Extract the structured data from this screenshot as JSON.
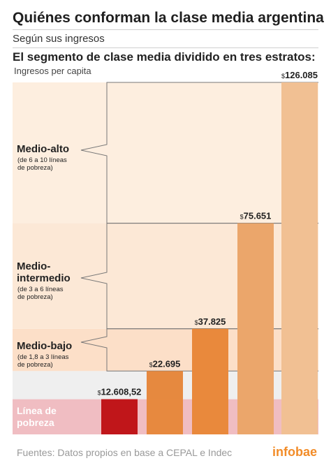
{
  "header": {
    "title": "Quiénes conforman la clase media argentina",
    "subtitle": "Según sus ingresos",
    "heading": "El segmento de clase media dividido en tres estratos:"
  },
  "footer": {
    "source": "Fuentes: Datos propios en base a CEPAL e Indec",
    "brand": "infobae"
  },
  "chart_data": {
    "type": "bar",
    "ylabel": "Ingresos per capita",
    "ylim": [
      0,
      126085
    ],
    "currency_symbol": "$",
    "bars": [
      {
        "value": 12608.52,
        "label": "12.608,52",
        "color": "#c0161a"
      },
      {
        "value": 22695,
        "label": "22.695",
        "color": "#e6893f"
      },
      {
        "value": 37825,
        "label": "37.825",
        "color": "#e9893c"
      },
      {
        "value": 75651,
        "label": "75.651",
        "color": "#eba66b"
      },
      {
        "value": 126085,
        "label": "126.085",
        "color": "#f1c093"
      }
    ],
    "bands": [
      {
        "from": 0,
        "to": 12608.52,
        "name": "Línea de pobreza",
        "color": "#f0bdc2"
      },
      {
        "from": 12608.52,
        "to": 22695,
        "color": "#efefef"
      },
      {
        "from": 22695,
        "to": 37825,
        "name": "Medio-bajo",
        "note": "(de 1,8 a 3 líneas de pobreza)",
        "color": "#fcdfc8"
      },
      {
        "from": 37825,
        "to": 75651,
        "name": "Medio-intermedio",
        "note": "(de 3 a 6 líneas de pobreza)",
        "color": "#fce8d6"
      },
      {
        "from": 75651,
        "to": 126085,
        "name": "Medio-alto",
        "note": "(de 6 a 10 líneas de pobreza)",
        "color": "#fdeedf"
      }
    ],
    "strata_labels": {
      "alto": {
        "name": "Medio-alto",
        "note": [
          "(de 6 a 10 líneas",
          "de pobreza)"
        ]
      },
      "intermedio": {
        "name": [
          "Medio-",
          "intermedio"
        ],
        "note": [
          "(de 3 a 6 líneas",
          "de pobreza)"
        ]
      },
      "bajo": {
        "name": "Medio-bajo",
        "note": [
          "(de 1,8 a 3 líneas",
          "de pobreza)"
        ]
      },
      "pobreza": {
        "name": [
          "Línea de",
          "pobreza"
        ]
      }
    }
  }
}
